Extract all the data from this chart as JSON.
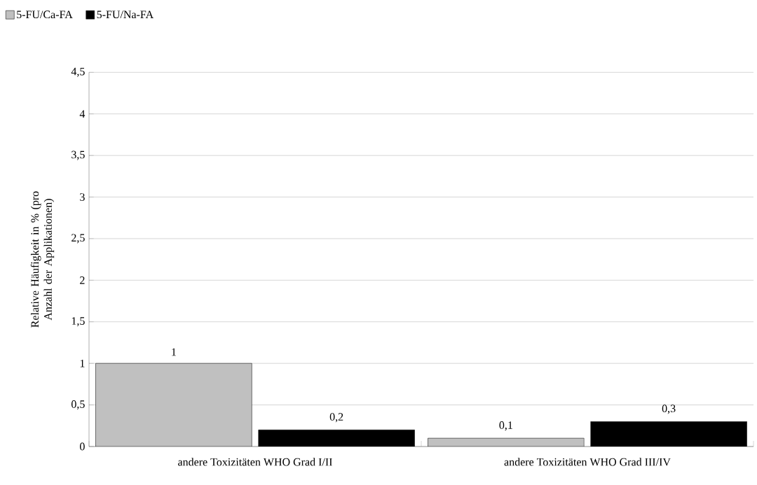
{
  "chart_data": {
    "type": "bar",
    "ylabel": "Relative Häufigkeit in % (pro Anzahl der Applikationen)",
    "categories": [
      "andere Toxizitäten WHO Grad I/II",
      "andere Toxizitäten WHO Grad III/IV"
    ],
    "series": [
      {
        "name": "5-FU/Ca-FA",
        "color": "#c0c0c0",
        "values": [
          1,
          0.1
        ],
        "value_labels": [
          "1",
          "0,1"
        ]
      },
      {
        "name": "5-FU/Na-FA",
        "color": "#000000",
        "values": [
          0.2,
          0.3
        ],
        "value_labels": [
          "0,2",
          "0,3"
        ]
      }
    ],
    "ylim": [
      0,
      4.5
    ],
    "yticks": [
      0,
      {
        "value": 0.5,
        "label": "0,5"
      },
      1,
      {
        "value": 1.5,
        "label": "1,5"
      },
      2,
      {
        "value": 2.5,
        "label": "2,5"
      },
      3,
      {
        "value": 3.5,
        "label": "3,5"
      },
      4,
      {
        "value": 4.5,
        "label": "4,5"
      }
    ],
    "grid": "y",
    "legend": "top left"
  }
}
